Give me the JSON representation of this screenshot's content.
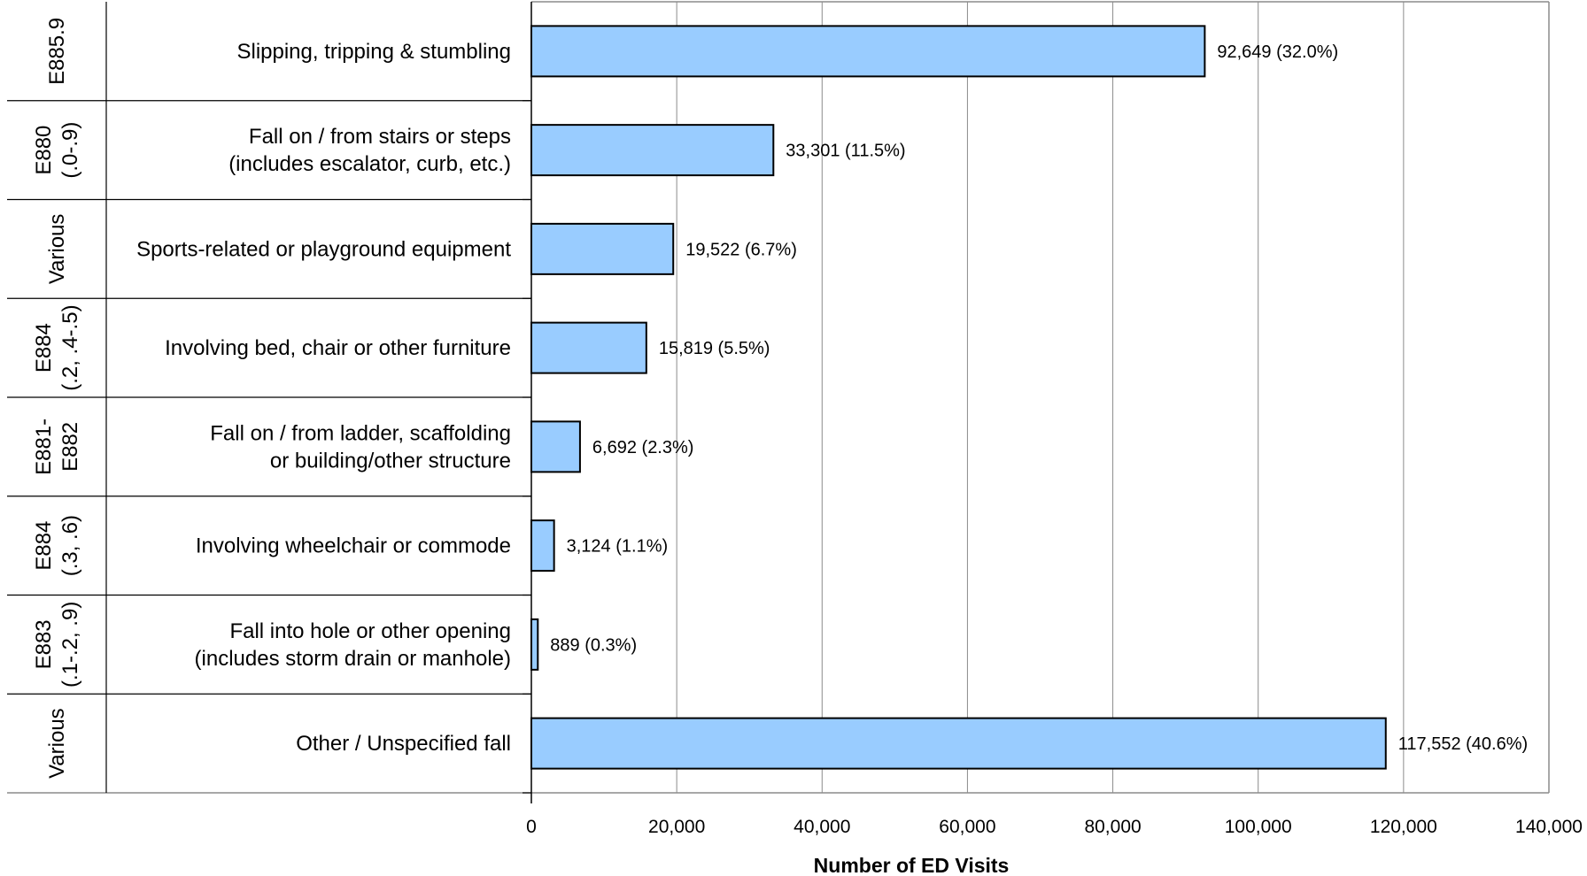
{
  "chart_data": {
    "type": "bar",
    "orientation": "horizontal",
    "title": "",
    "xlabel": "Number of ED Visits",
    "ylabel": "",
    "xlim": [
      0,
      140000
    ],
    "xticks": [
      0,
      20000,
      40000,
      60000,
      80000,
      100000,
      120000,
      140000
    ],
    "xtick_labels": [
      "0",
      "20,000",
      "40,000",
      "60,000",
      "80,000",
      "100,000",
      "120,000",
      "140,000"
    ],
    "grid": "vertical",
    "bar_color": "#99ccff",
    "categories": [
      {
        "code": [
          "E885.9"
        ],
        "label": [
          "Slipping, tripping & stumbling"
        ],
        "value": 92649,
        "value_label": "92,649 (32.0%)"
      },
      {
        "code": [
          "E880",
          "(.0-.9)"
        ],
        "label": [
          "Fall on / from stairs or steps",
          "(includes escalator, curb, etc.)"
        ],
        "value": 33301,
        "value_label": "33,301 (11.5%)"
      },
      {
        "code": [
          "Various"
        ],
        "label": [
          "Sports-related or playground equipment"
        ],
        "value": 19522,
        "value_label": "19,522 (6.7%)"
      },
      {
        "code": [
          "E884",
          "(.2, .4-.5)"
        ],
        "label": [
          "Involving bed, chair or other furniture"
        ],
        "value": 15819,
        "value_label": "15,819 (5.5%)"
      },
      {
        "code": [
          "E881-",
          "E882"
        ],
        "label": [
          "Fall on / from ladder, scaffolding",
          "or building/other structure"
        ],
        "value": 6692,
        "value_label": "6,692 (2.3%)"
      },
      {
        "code": [
          "E884",
          "(.3, .6)"
        ],
        "label": [
          "Involving wheelchair or commode"
        ],
        "value": 3124,
        "value_label": "3,124 (1.1%)"
      },
      {
        "code": [
          "E883",
          "(.1-.2, .9)"
        ],
        "label": [
          "Fall into hole or other opening",
          "(includes storm drain or manhole)"
        ],
        "value": 889,
        "value_label": "889 (0.3%)"
      },
      {
        "code": [
          "Various"
        ],
        "label": [
          "Other / Unspecified fall"
        ],
        "value": 117552,
        "value_label": "117,552 (40.6%)"
      }
    ]
  }
}
